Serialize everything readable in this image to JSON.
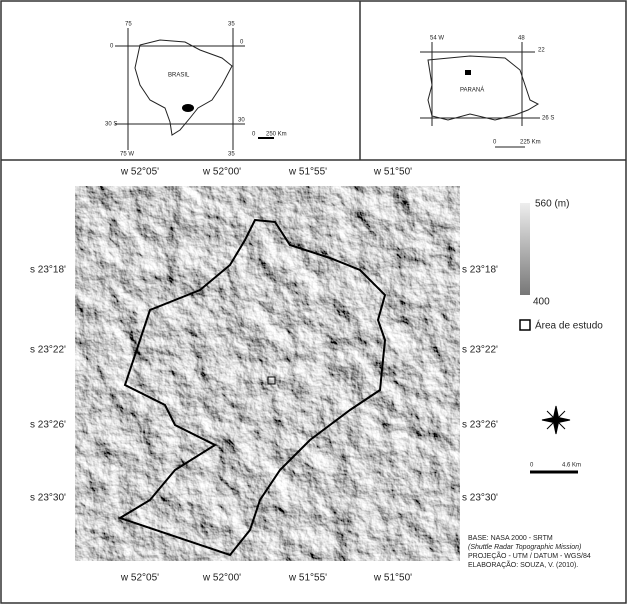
{
  "inset_brasil": {
    "top_left": "75",
    "top_right": "35",
    "left_top": "0",
    "right_top": "0",
    "name": "BRASIL",
    "left_bottom": "30 S",
    "right_bottom": "30",
    "bottom_left": "75 W",
    "bottom_right": "35",
    "scale_zero": "0",
    "scale_label": "250 Km"
  },
  "inset_parana": {
    "top_left": "54 W",
    "top_right": "48",
    "right_top": "22",
    "name": "PARANÁ",
    "right_bottom": "26 S",
    "scale_zero": "0",
    "scale_label": "225 Km"
  },
  "main_map": {
    "top_labels": [
      "w 52°05'",
      "w 52°00'",
      "w 51°55'",
      "w 51°50'"
    ],
    "bottom_labels": [
      "w 52°05'",
      "w 52°00'",
      "w 51°55'",
      "w 51°50'"
    ],
    "left_labels": [
      "s 23°18'",
      "s 23°22'",
      "s 23°26'",
      "s 23°30'"
    ],
    "right_labels": [
      "s 23°18'",
      "s 23°22'",
      "s 23°26'",
      "s 23°30'"
    ]
  },
  "legend": {
    "max_label": "560 (m)",
    "min_label": "400",
    "study_area": "Área de estudo",
    "scale_zero": "0",
    "scale_label": "4.6 Km"
  },
  "credits": [
    "BASE: NASA 2000 - SRTM",
    "(Shuttle Radar Topographic Mission)",
    "PROJEÇÃO - UTM / DATUM - WGS/84",
    "ELABORAÇÃO: SOUZA, V. (2010)."
  ]
}
